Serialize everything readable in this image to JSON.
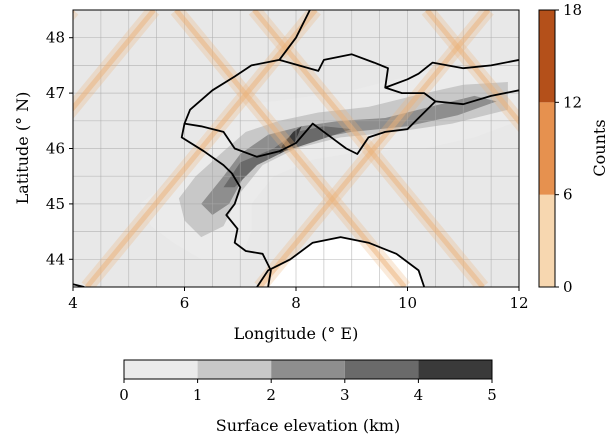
{
  "chart_data": {
    "type": "heatmap",
    "map": {
      "xlabel": "Longitude (° E)",
      "ylabel": "Latitude (° N)",
      "xlim": [
        4,
        12
      ],
      "ylim": [
        43.5,
        48.5
      ],
      "xticks": [
        4,
        6,
        8,
        10,
        12
      ],
      "yticks": [
        44,
        45,
        46,
        47,
        48
      ],
      "grid": true,
      "grid_step_lon": 0.5,
      "grid_step_lat": 0.5,
      "land_color": "#e8e8e8",
      "sea_color": "#ffffff",
      "border_color": "#000000"
    },
    "counts_colorbar": {
      "label": "Counts",
      "ticks": [
        0,
        6,
        12,
        18
      ],
      "bins": [
        {
          "from": 0,
          "to": 6,
          "color": "#f7d7b0"
        },
        {
          "from": 6,
          "to": 12,
          "color": "#e6914f"
        },
        {
          "from": 12,
          "to": 18,
          "color": "#b4501a"
        }
      ],
      "track_color": "#ecb27a",
      "track_opacity": 0.5
    },
    "elevation_colorbar": {
      "label": "Surface elevation (km)",
      "ticks": [
        0,
        1,
        2,
        3,
        4,
        5
      ],
      "bins": [
        {
          "from": 0,
          "to": 1,
          "color": "#ebebeb"
        },
        {
          "from": 1,
          "to": 2,
          "color": "#c8c8c8"
        },
        {
          "from": 2,
          "to": 3,
          "color": "#8e8e8e"
        },
        {
          "from": 3,
          "to": 4,
          "color": "#6a6a6a"
        },
        {
          "from": 4,
          "to": 5,
          "color": "#3a3a3a"
        }
      ]
    },
    "tracks": [
      {
        "direction": "descending",
        "lon_at_lat48_5": 4.0,
        "dlon_per_dlat": 0.82
      },
      {
        "direction": "descending",
        "lon_at_lat48_5": 5.45,
        "dlon_per_dlat": 0.82
      },
      {
        "direction": "descending",
        "lon_at_lat48_5": 8.35,
        "dlon_per_dlat": 0.82
      },
      {
        "direction": "descending",
        "lon_at_lat48_5": 11.45,
        "dlon_per_dlat": 0.82
      },
      {
        "direction": "ascending",
        "lon_at_lat48_5": 5.85,
        "dlon_per_dlat": -0.82
      },
      {
        "direction": "ascending",
        "lon_at_lat48_5": 7.25,
        "dlon_per_dlat": -0.82
      },
      {
        "direction": "ascending",
        "lon_at_lat48_5": 10.35,
        "dlon_per_dlat": -0.82
      },
      {
        "direction": "ascending",
        "lon_at_lat48_5": 13.35,
        "dlon_per_dlat": -0.82
      }
    ],
    "borders": [
      [
        [
          8.25,
          48.5
        ],
        [
          8.0,
          48.0
        ],
        [
          7.7,
          47.6
        ],
        [
          7.2,
          47.5
        ],
        [
          6.9,
          47.3
        ],
        [
          6.5,
          47.05
        ],
        [
          6.1,
          46.7
        ],
        [
          6.0,
          46.45
        ],
        [
          6.3,
          46.4
        ],
        [
          6.7,
          46.3
        ],
        [
          6.9,
          46.0
        ],
        [
          7.3,
          45.85
        ],
        [
          7.7,
          45.95
        ],
        [
          8.0,
          46.1
        ],
        [
          8.3,
          46.45
        ],
        [
          8.7,
          46.15
        ],
        [
          8.9,
          46.0
        ],
        [
          9.1,
          45.9
        ],
        [
          9.3,
          46.2
        ],
        [
          9.6,
          46.3
        ],
        [
          10.0,
          46.35
        ],
        [
          10.2,
          46.55
        ],
        [
          10.5,
          46.85
        ],
        [
          10.3,
          47.0
        ],
        [
          9.9,
          47.0
        ],
        [
          9.6,
          47.1
        ],
        [
          9.65,
          47.45
        ],
        [
          9.4,
          47.55
        ],
        [
          9.0,
          47.7
        ],
        [
          8.5,
          47.6
        ],
        [
          8.4,
          47.4
        ],
        [
          7.7,
          47.6
        ]
      ],
      [
        [
          6.0,
          46.45
        ],
        [
          5.95,
          46.2
        ],
        [
          6.35,
          45.95
        ],
        [
          6.7,
          45.7
        ],
        [
          6.85,
          45.55
        ],
        [
          7.0,
          45.3
        ],
        [
          6.9,
          45.0
        ],
        [
          6.75,
          44.8
        ],
        [
          6.95,
          44.55
        ],
        [
          6.9,
          44.3
        ],
        [
          7.1,
          44.15
        ],
        [
          7.4,
          44.1
        ],
        [
          7.55,
          43.8
        ],
        [
          7.5,
          43.5
        ]
      ],
      [
        [
          9.6,
          47.1
        ],
        [
          10.0,
          47.25
        ],
        [
          10.2,
          47.35
        ],
        [
          10.45,
          47.55
        ],
        [
          11.0,
          47.45
        ],
        [
          11.5,
          47.5
        ],
        [
          12.0,
          47.6
        ]
      ],
      [
        [
          10.5,
          46.85
        ],
        [
          11.0,
          46.8
        ],
        [
          11.5,
          46.95
        ],
        [
          12.0,
          47.05
        ]
      ],
      [
        [
          7.3,
          43.5
        ],
        [
          7.5,
          43.8
        ],
        [
          7.9,
          44.0
        ],
        [
          8.3,
          44.3
        ],
        [
          8.8,
          44.4
        ],
        [
          9.3,
          44.3
        ],
        [
          9.8,
          44.1
        ],
        [
          10.2,
          43.8
        ],
        [
          10.3,
          43.5
        ]
      ],
      [
        [
          4.0,
          43.55
        ],
        [
          4.2,
          43.5
        ]
      ]
    ],
    "elevation_regions": [
      {
        "level": 1,
        "poly": [
          [
            5.2,
            45.0
          ],
          [
            5.6,
            45.3
          ],
          [
            5.9,
            45.6
          ],
          [
            6.2,
            46.1
          ],
          [
            6.5,
            46.45
          ],
          [
            7.0,
            46.8
          ],
          [
            7.6,
            46.85
          ],
          [
            8.3,
            46.95
          ],
          [
            9.0,
            47.05
          ],
          [
            9.8,
            47.25
          ],
          [
            10.6,
            47.45
          ],
          [
            11.4,
            47.55
          ],
          [
            12.0,
            47.55
          ],
          [
            12.0,
            46.5
          ],
          [
            11.2,
            46.2
          ],
          [
            10.3,
            46.0
          ],
          [
            9.2,
            45.95
          ],
          [
            8.3,
            45.8
          ],
          [
            7.6,
            45.5
          ],
          [
            7.2,
            45.0
          ],
          [
            7.2,
            44.5
          ],
          [
            7.0,
            44.0
          ],
          [
            6.3,
            44.0
          ],
          [
            5.8,
            44.3
          ],
          [
            5.4,
            44.6
          ]
        ]
      },
      {
        "level": 2,
        "poly": [
          [
            5.9,
            45.1
          ],
          [
            6.2,
            45.5
          ],
          [
            6.7,
            45.95
          ],
          [
            7.1,
            46.3
          ],
          [
            7.7,
            46.5
          ],
          [
            8.4,
            46.65
          ],
          [
            9.3,
            46.75
          ],
          [
            10.1,
            46.95
          ],
          [
            11.0,
            47.15
          ],
          [
            11.8,
            47.2
          ],
          [
            11.8,
            46.7
          ],
          [
            10.8,
            46.45
          ],
          [
            9.8,
            46.3
          ],
          [
            8.8,
            46.2
          ],
          [
            8.0,
            46.0
          ],
          [
            7.4,
            45.7
          ],
          [
            7.0,
            45.2
          ],
          [
            6.7,
            44.6
          ],
          [
            6.3,
            44.4
          ],
          [
            6.0,
            44.7
          ]
        ]
      },
      {
        "level": 3,
        "poly": [
          [
            6.3,
            45.0
          ],
          [
            6.7,
            45.5
          ],
          [
            7.0,
            45.9
          ],
          [
            7.5,
            46.25
          ],
          [
            8.1,
            46.4
          ],
          [
            8.8,
            46.5
          ],
          [
            9.6,
            46.55
          ],
          [
            10.4,
            46.75
          ],
          [
            11.2,
            46.95
          ],
          [
            11.6,
            46.85
          ],
          [
            10.9,
            46.6
          ],
          [
            10.0,
            46.4
          ],
          [
            9.0,
            46.3
          ],
          [
            8.2,
            46.15
          ],
          [
            7.6,
            45.95
          ],
          [
            7.1,
            45.55
          ],
          [
            6.8,
            45.0
          ],
          [
            6.5,
            44.8
          ]
        ]
      },
      {
        "level": 4,
        "poly": [
          [
            6.7,
            45.3
          ],
          [
            7.0,
            45.75
          ],
          [
            7.6,
            46.0
          ],
          [
            8.0,
            46.3
          ],
          [
            8.5,
            46.4
          ],
          [
            9.0,
            46.35
          ],
          [
            8.4,
            46.15
          ],
          [
            7.8,
            45.95
          ],
          [
            7.3,
            45.7
          ],
          [
            6.9,
            45.3
          ]
        ]
      },
      {
        "level": 5,
        "poly": [
          [
            7.7,
            45.9
          ],
          [
            7.95,
            46.05
          ],
          [
            8.1,
            46.4
          ],
          [
            7.95,
            46.3
          ],
          [
            7.75,
            46.05
          ]
        ]
      }
    ]
  }
}
